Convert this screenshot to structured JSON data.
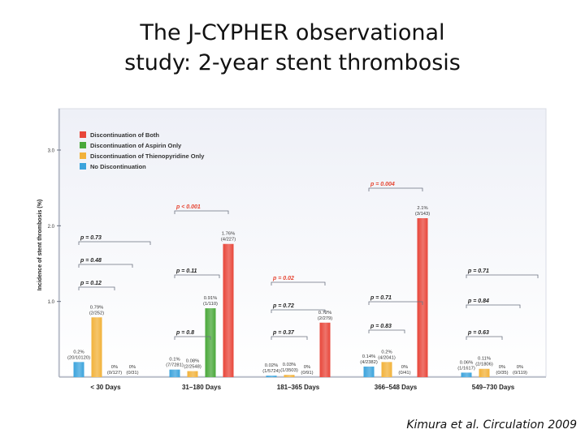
{
  "slide": {
    "title_line1": "The J-CYPHER observational",
    "title_line2": "study: 2-year stent thrombosis",
    "citation": "Kimura et al. Circulation 2009"
  },
  "chart_data": {
    "type": "bar",
    "ylabel": "Incidence of stent thrombosis (%)",
    "ylim": [
      0,
      3.0
    ],
    "yticks": [
      "1.0",
      "2.0",
      "3.0"
    ],
    "grid": false,
    "legend_position": "top-left",
    "categories": [
      "< 30 Days",
      "31–180 Days",
      "181–365 Days",
      "366–548 Days",
      "549–730 Days"
    ],
    "series": [
      {
        "name": "Discontinuation of Both",
        "color": "#e8463a",
        "values": [
          0,
          1.76,
          0.72,
          2.1,
          0
        ],
        "labels": [
          "0%\n(0/31)",
          "1.76%\n(4/227)",
          "0.72%\n(2/279)",
          "2.1%\n(3/143)",
          "0%\n(0/119)"
        ]
      },
      {
        "name": "Discontinuation of Aspirin Only",
        "color": "#4aa83a",
        "values": [
          0,
          0.91,
          0,
          0,
          0
        ],
        "labels": [
          "0%\n(0/127)",
          "0.91%\n(1/110)",
          "0%\n(0/91)",
          "0%\n(0/41)",
          "0%\n(0/35)"
        ]
      },
      {
        "name": "Discontinuation of Thienopyridine Only",
        "color": "#f2b23a",
        "values": [
          0.79,
          0.08,
          0.03,
          0.2,
          0.11
        ],
        "labels": [
          "0.79%\n(2/252)",
          "0.08%\n(2/2548)",
          "0.03%\n(1/3503)",
          "0.2%\n(4/2041)",
          "0.11%\n(2/1806)"
        ]
      },
      {
        "name": "No Discontinuation",
        "color": "#3ba3dc",
        "values": [
          0.2,
          0.1,
          0.02,
          0.14,
          0.06
        ],
        "labels": [
          "0.2%\n(20/10120)",
          "0.1%\n(7/7281)",
          "0.02%\n(1/5724)",
          "0.14%\n(4/2382)",
          "0.06%\n(1/1617)"
        ]
      }
    ],
    "p_values": [
      {
        "group": "< 30 Days",
        "tiers": [
          {
            "text": "p = 0.73",
            "highlight": false
          },
          {
            "text": "p = 0.48",
            "highlight": false
          },
          {
            "text": "p = 0.12",
            "highlight": false
          }
        ]
      },
      {
        "group": "31–180 Days",
        "tiers": [
          {
            "text": "p < 0.001",
            "highlight": true
          },
          {
            "text": "p = 0.11",
            "highlight": false
          },
          {
            "text": "p = 0.8",
            "highlight": false
          }
        ]
      },
      {
        "group": "181–365 Days",
        "tiers": [
          {
            "text": "p = 0.02",
            "highlight": true
          },
          {
            "text": "p = 0.72",
            "highlight": false
          },
          {
            "text": "p = 0.37",
            "highlight": false
          }
        ]
      },
      {
        "group": "366–548 Days",
        "tiers": [
          {
            "text": "p = 0.004",
            "highlight": true
          },
          {
            "text": "p = 0.71",
            "highlight": false
          },
          {
            "text": "p = 0.83",
            "highlight": false
          }
        ]
      },
      {
        "group": "549–730 Days",
        "tiers": [
          {
            "text": "p = 0.71",
            "highlight": false
          },
          {
            "text": "p = 0.84",
            "highlight": false
          },
          {
            "text": "p = 0.63",
            "highlight": false
          }
        ]
      }
    ]
  }
}
